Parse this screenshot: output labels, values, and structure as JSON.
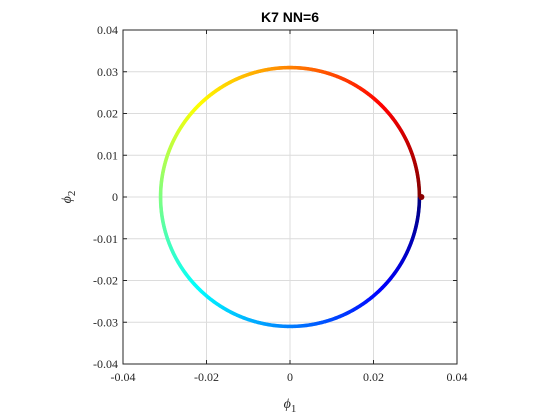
{
  "chart_data": {
    "type": "scatter",
    "title": "K7 NN=6",
    "xlabel": {
      "symbol": "ϕ",
      "subscript": "1"
    },
    "ylabel": {
      "symbol": "ϕ",
      "subscript": "2"
    },
    "xlim": [
      -0.04,
      0.04
    ],
    "ylim": [
      -0.04,
      0.04
    ],
    "xticks": [
      -0.04,
      -0.02,
      0,
      0.02,
      0.04
    ],
    "yticks": [
      -0.04,
      -0.03,
      -0.02,
      -0.01,
      0,
      0.01,
      0.02,
      0.03,
      0.04
    ],
    "xtick_labels": [
      "-0.04",
      "-0.02",
      "0",
      "0.02",
      "0.04"
    ],
    "ytick_labels": [
      "-0.04",
      "-0.03",
      "-0.02",
      "-0.01",
      "0",
      "0.01",
      "0.02",
      "0.03",
      "0.04"
    ],
    "grid": true,
    "colormap": "jet",
    "series": [
      {
        "shape": "circle",
        "center": [
          0,
          0
        ],
        "radius": 0.031,
        "color_by": "angle",
        "marked_point": [
          0.031,
          0
        ]
      }
    ]
  },
  "colors": {
    "grid": "#dcdcdc",
    "axis": "#262626",
    "marker": "#8b0000"
  }
}
